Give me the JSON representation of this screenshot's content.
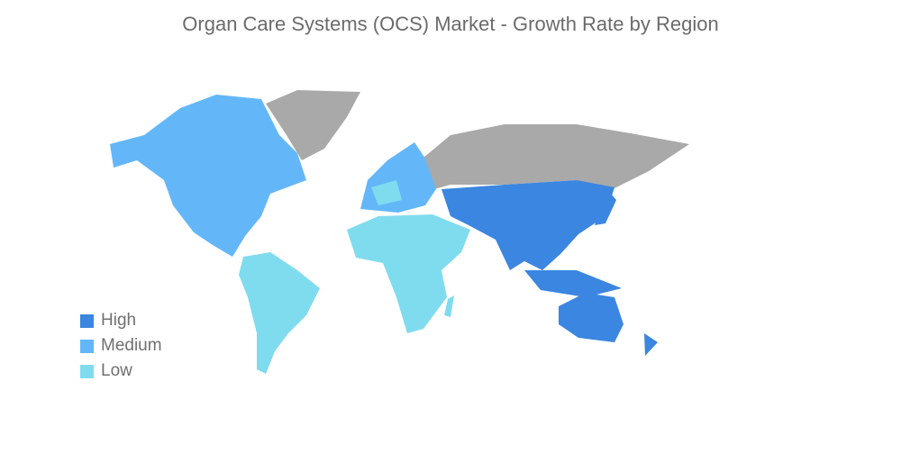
{
  "title": "Organ Care Systems (OCS) Market - Growth Rate by Region",
  "colors": {
    "High": "#3b86e0",
    "Medium": "#63b7f8",
    "Low": "#7fdcef",
    "No data": "#a9a9a9"
  },
  "legend": [
    {
      "label": "High",
      "color": "#3b86e0"
    },
    {
      "label": "Medium",
      "color": "#63b7f8"
    },
    {
      "label": "Low",
      "color": "#7fdcef"
    }
  ],
  "regions": [
    {
      "name": "North America",
      "level": "Medium"
    },
    {
      "name": "Europe",
      "level": "Medium"
    },
    {
      "name": "Asia-Pacific",
      "level": "High"
    },
    {
      "name": "South America",
      "level": "Low"
    },
    {
      "name": "Middle East and Africa",
      "level": "Low"
    }
  ]
}
